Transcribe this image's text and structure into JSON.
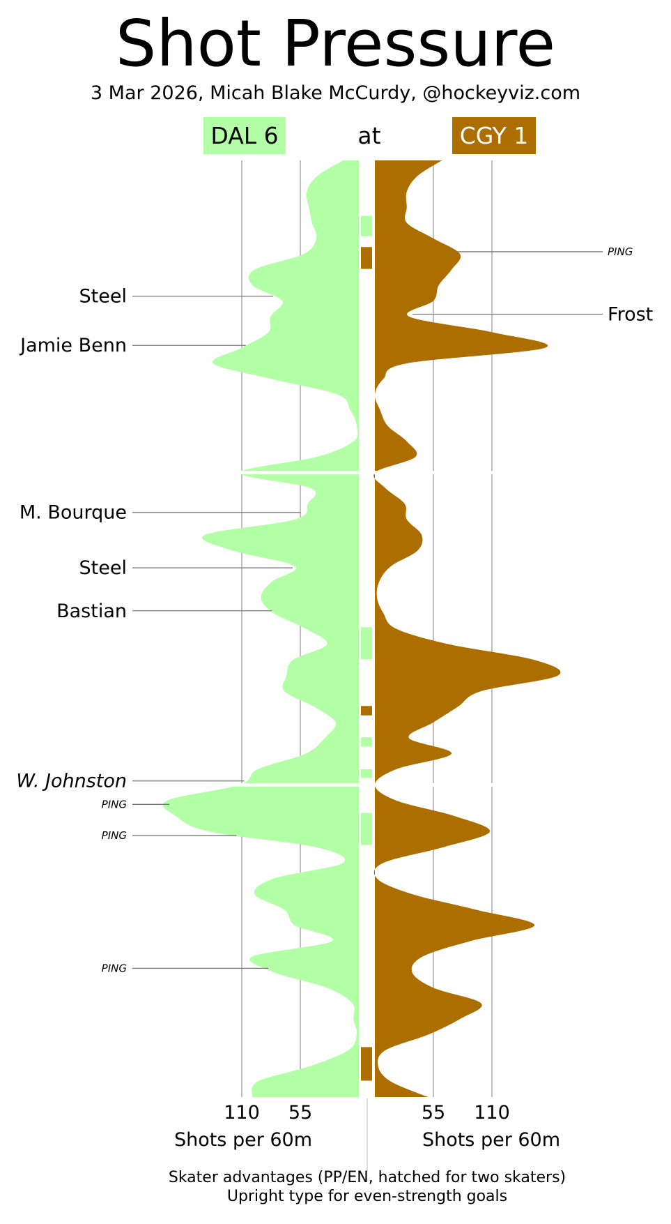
{
  "title": "Shot Pressure",
  "subtitle": "3 Mar 2026, Micah Blake McCurdy, @hockeyviz.com",
  "at_label": "at",
  "colors": {
    "away": "#b2ffa6",
    "home": "#ad6e00",
    "grid": "#aaaaaa",
    "leader": "#777777"
  },
  "away": {
    "abbr": "DAL",
    "score": "6",
    "label": "DAL 6"
  },
  "home": {
    "abbr": "CGY",
    "score": "1",
    "label": "CGY 1"
  },
  "footer": {
    "line1": "Skater advantages (PP/EN, hatched for two skaters)",
    "line2": "Upright type for even-strength goals"
  },
  "chart_data": {
    "type": "area",
    "orientation": "vertical",
    "x_unit": "game minute",
    "xlim": [
      0,
      60
    ],
    "periods": 3,
    "xlabel_away": "Shots per 60m",
    "xlabel_home": "Shots per 60m",
    "ticks_away": [
      110,
      55
    ],
    "ticks_home": [
      55,
      110
    ],
    "series": [
      {
        "name": "DAL",
        "side": "left",
        "minutes": [
          0,
          1,
          2,
          3,
          4,
          5,
          6,
          7,
          8,
          9,
          10,
          11,
          12,
          13,
          14,
          15,
          16,
          17,
          18,
          19,
          20,
          21,
          22,
          23,
          24,
          25,
          26,
          27,
          28,
          29,
          30,
          31,
          32,
          33,
          34,
          35,
          36,
          37,
          38,
          39,
          40,
          41,
          42,
          43,
          44,
          45,
          46,
          47,
          48,
          49,
          50,
          51,
          52,
          53,
          54,
          55,
          56,
          57,
          58,
          59,
          60
        ],
        "rate": [
          15,
          39,
          49,
          47,
          44,
          40,
          52,
          98,
          100,
          72,
          83,
          85,
          110,
          137,
          82,
          20,
          8,
          2,
          5,
          40,
          112,
          45,
          48,
          60,
          145,
          118,
          60,
          82,
          92,
          80,
          50,
          30,
          62,
          68,
          70,
          42,
          22,
          32,
          50,
          95,
          112,
          180,
          172,
          140,
          40,
          15,
          80,
          98,
          70,
          60,
          25,
          100,
          80,
          30,
          6,
          5,
          2,
          10,
          45,
          95,
          100
        ]
      },
      {
        "name": "CGY",
        "side": "right",
        "minutes": [
          0,
          1,
          2,
          3,
          4,
          5,
          6,
          7,
          8,
          9,
          10,
          11,
          12,
          13,
          14,
          15,
          16,
          17,
          18,
          19,
          20,
          21,
          22,
          23,
          24,
          25,
          26,
          27,
          28,
          29,
          30,
          31,
          32,
          33,
          34,
          35,
          36,
          37,
          38,
          39,
          40,
          41,
          42,
          43,
          44,
          45,
          46,
          47,
          48,
          49,
          50,
          51,
          52,
          53,
          54,
          55,
          56,
          57,
          58,
          59,
          60
        ],
        "rate": [
          63,
          40,
          30,
          30,
          30,
          55,
          80,
          72,
          60,
          55,
          32,
          110,
          160,
          30,
          8,
          0,
          5,
          12,
          30,
          38,
          0,
          10,
          28,
          30,
          44,
          40,
          15,
          4,
          2,
          8,
          20,
          70,
          150,
          172,
          100,
          78,
          55,
          32,
          72,
          20,
          0,
          20,
          75,
          108,
          64,
          8,
          2,
          35,
          95,
          150,
          90,
          45,
          35,
          55,
          100,
          80,
          50,
          10,
          3,
          15,
          50
        ]
      }
    ],
    "advantages": [
      {
        "team": "DAL",
        "start": 3.55,
        "end": 4.85
      },
      {
        "team": "CGY",
        "start": 5.55,
        "end": 6.95
      },
      {
        "team": "DAL",
        "start": 29.9,
        "end": 31.95
      },
      {
        "team": "CGY",
        "start": 34.95,
        "end": 35.55
      },
      {
        "team": "DAL",
        "start": 36.95,
        "end": 37.55
      },
      {
        "team": "DAL",
        "start": 39.0,
        "end": 39.55
      },
      {
        "team": "DAL",
        "start": 41.8,
        "end": 43.85
      },
      {
        "team": "CGY",
        "start": 56.8,
        "end": 58.95
      }
    ],
    "goals": [
      {
        "team": "DAL",
        "minute": 8.7,
        "label": "Steel",
        "style": "upright",
        "size": "large"
      },
      {
        "team": "DAL",
        "minute": 11.85,
        "label": "Jamie Benn",
        "style": "upright",
        "size": "large"
      },
      {
        "team": "DAL",
        "minute": 22.55,
        "label": "M. Bourque",
        "style": "upright",
        "size": "large"
      },
      {
        "team": "DAL",
        "minute": 26.1,
        "label": "Steel",
        "style": "upright",
        "size": "large"
      },
      {
        "team": "DAL",
        "minute": 28.85,
        "label": "Bastian",
        "style": "upright",
        "size": "large"
      },
      {
        "team": "DAL",
        "minute": 39.75,
        "label": "W. Johnston",
        "style": "italic",
        "size": "large"
      },
      {
        "team": "DAL",
        "minute": 41.25,
        "label": "PING",
        "style": "italic",
        "size": "small"
      },
      {
        "team": "DAL",
        "minute": 43.25,
        "label": "PING",
        "style": "italic",
        "size": "small"
      },
      {
        "team": "DAL",
        "minute": 51.75,
        "label": "PING",
        "style": "italic",
        "size": "small"
      },
      {
        "team": "CGY",
        "minute": 5.85,
        "label": "PING",
        "style": "italic",
        "size": "small"
      },
      {
        "team": "CGY",
        "minute": 9.85,
        "label": "Frost",
        "style": "upright",
        "size": "large"
      }
    ]
  }
}
